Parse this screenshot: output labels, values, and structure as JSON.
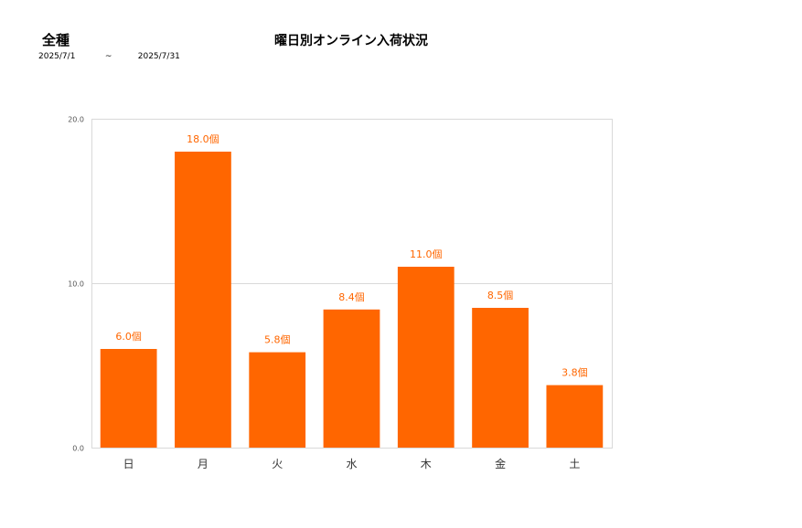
{
  "header": {
    "category": "全種",
    "title": "曜日別オンライン入荷状況",
    "date_start": "2025/7/1",
    "date_separator": "~",
    "date_end": "2025/7/31"
  },
  "chart_data": {
    "type": "bar",
    "categories": [
      "日",
      "月",
      "火",
      "水",
      "木",
      "金",
      "土"
    ],
    "values": [
      6.0,
      18.0,
      5.8,
      8.4,
      11.0,
      8.5,
      3.8
    ],
    "data_labels": [
      "6.0個",
      "18.0個",
      "5.8個",
      "8.4個",
      "11.0個",
      "8.5個",
      "3.8個"
    ],
    "title": "曜日別オンライン入荷状況",
    "xlabel": "",
    "ylabel": "",
    "ylim": [
      0,
      20
    ],
    "yticks": [
      0,
      10,
      20
    ],
    "ytick_labels": [
      "0.0",
      "10.0",
      "20.0"
    ],
    "grid": true,
    "bar_color": "#ff6600",
    "label_color": "#ff6600"
  }
}
